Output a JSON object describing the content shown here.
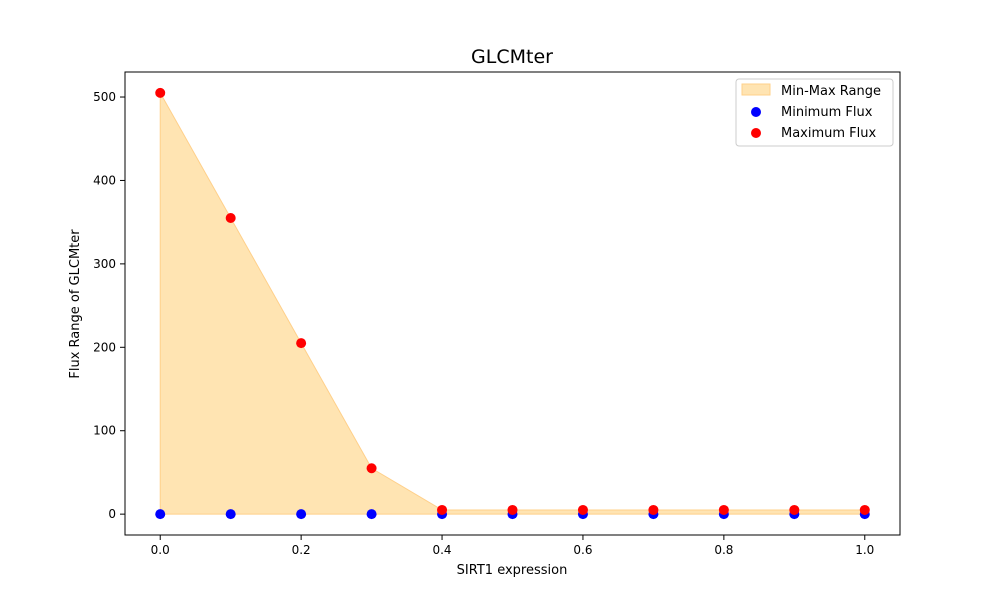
{
  "chart_data": {
    "type": "scatter",
    "title": "GLCMter",
    "xlabel": "SIRT1 expression",
    "ylabel": "Flux Range of GLCMter",
    "x": [
      0.0,
      0.1,
      0.2,
      0.3,
      0.4,
      0.5,
      0.6,
      0.7,
      0.8,
      0.9,
      1.0
    ],
    "series": [
      {
        "name": "Minimum Flux",
        "color": "#0000ff",
        "values": [
          0,
          0,
          0,
          0,
          0,
          0,
          0,
          0,
          0,
          0,
          0
        ]
      },
      {
        "name": "Maximum Flux",
        "color": "#ff0000",
        "values": [
          505,
          355,
          205,
          55,
          5,
          5,
          5,
          5,
          5,
          5,
          5
        ]
      }
    ],
    "fill": {
      "name": "Min-Max Range",
      "color": "#ffe4b2",
      "edge_color": "#ffd08a"
    },
    "xlim": [
      -0.05,
      1.05
    ],
    "ylim": [
      -25,
      530
    ],
    "xticks": [
      0.0,
      0.2,
      0.4,
      0.6,
      0.8,
      1.0
    ],
    "xtick_labels": [
      "0.0",
      "0.2",
      "0.4",
      "0.6",
      "0.8",
      "1.0"
    ],
    "yticks": [
      0,
      100,
      200,
      300,
      400,
      500
    ],
    "ytick_labels": [
      "0",
      "100",
      "200",
      "300",
      "400",
      "500"
    ],
    "grid": false,
    "legend_position": "top-right"
  }
}
